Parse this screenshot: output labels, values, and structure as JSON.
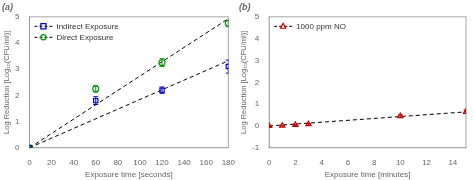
{
  "chart_data": [
    {
      "type": "scatter",
      "title": "(a)",
      "xlabel": "Exposure time [seconds]",
      "ylabel": "Log Reduction [Log₁₀(CFU/ml)]",
      "xlim": [
        0,
        180
      ],
      "ylim": [
        0,
        5
      ],
      "xticks": [
        0,
        20,
        40,
        60,
        80,
        100,
        120,
        140,
        160,
        180
      ],
      "yticks": [
        0,
        1,
        2,
        3,
        4,
        5
      ],
      "grid": false,
      "legend": "upper left",
      "series": [
        {
          "name": "Indirect Exposure",
          "type": "scatter",
          "marker": "square",
          "color": "#0000cc",
          "x": [
            0,
            60,
            120,
            180
          ],
          "values": [
            0,
            1.8,
            2.2,
            3.1
          ],
          "yerr": [
            0.0,
            0.15,
            0.12,
            0.25
          ]
        },
        {
          "name": "Direct Exposure",
          "type": "scatter",
          "marker": "circle",
          "color": "#009900",
          "x": [
            0,
            60,
            120,
            180
          ],
          "values": [
            0,
            2.25,
            3.25,
            4.75
          ],
          "yerr": [
            0.0,
            0.12,
            0.15,
            0.12
          ]
        },
        {
          "type": "line",
          "line_style": "dashed",
          "color": "#000000",
          "x": [
            0,
            180
          ],
          "values": [
            0,
            3.3214285714285716
          ]
        },
        {
          "type": "line",
          "line_style": "dashed",
          "color": "#000000",
          "x": [
            0,
            180
          ],
          "values": [
            0,
            4.928571428571429
          ]
        }
      ]
    },
    {
      "type": "scatter",
      "title": "(b)",
      "xlabel": "Exposure time [minutes]",
      "ylabel": "Log Reduction [Log₁₀(CFU/ml)]",
      "xlim": [
        0,
        15
      ],
      "ylim": [
        -1,
        5
      ],
      "xticks": [
        0,
        2,
        4,
        6,
        8,
        10,
        12,
        14
      ],
      "yticks": [
        -1,
        0,
        1,
        2,
        3,
        4,
        5
      ],
      "grid": false,
      "legend": "upper left",
      "series": [
        {
          "name": "1000 ppm NO",
          "type": "scatter",
          "marker": "triangle",
          "color": "#cc0000",
          "x": [
            0,
            1,
            2,
            3,
            10,
            15
          ],
          "values": [
            0.0,
            0.01,
            0.05,
            0.08,
            0.45,
            0.65
          ],
          "yerr": [
            0.02,
            0.02,
            0.03,
            0.03,
            0.05,
            0.08
          ]
        },
        {
          "type": "line",
          "line_style": "dashed",
          "color": "#000000",
          "x": [
            0,
            15
          ],
          "values": [
            0,
            0.6460176991150443
          ]
        }
      ]
    }
  ]
}
